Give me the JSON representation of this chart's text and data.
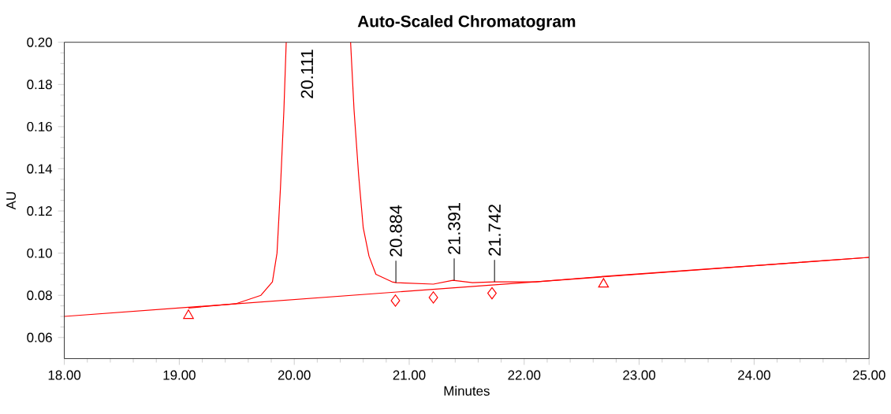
{
  "chart_data": {
    "type": "line",
    "title": "Auto-Scaled Chromatogram",
    "xlabel": "Minutes",
    "ylabel": "AU",
    "xlim": [
      18,
      25
    ],
    "ylim": [
      0.05,
      0.2
    ],
    "xticks": [
      {
        "value": 18,
        "label": "18.00"
      },
      {
        "value": 19,
        "label": "19.00"
      },
      {
        "value": 20,
        "label": "20.00"
      },
      {
        "value": 21,
        "label": "21.00"
      },
      {
        "value": 22,
        "label": "22.00"
      },
      {
        "value": 23,
        "label": "23.00"
      },
      {
        "value": 24,
        "label": "24.00"
      },
      {
        "value": 25,
        "label": "25.00"
      }
    ],
    "yticks": [
      0.06,
      0.08,
      {
        "value": 0.1,
        "label": "0.10"
      },
      0.12,
      0.14,
      0.16,
      0.18,
      {
        "value": 0.2,
        "label": "0.20"
      }
    ],
    "grid": false,
    "series": [
      {
        "color": "#ff0000",
        "marker": "none",
        "x": [
          19.08,
          19.49,
          19.71,
          19.81,
          19.85,
          19.88,
          19.91,
          19.93,
          20.111,
          20.49,
          20.52,
          20.56,
          20.6,
          20.65,
          20.71,
          20.85,
          20.885,
          21.21,
          21.38,
          21.55,
          21.74,
          22.1,
          22.69,
          25
        ],
        "values": [
          0.074,
          0.076,
          0.08,
          0.0864,
          0.1,
          0.131,
          0.168,
          0.2,
          null,
          0.2,
          0.168,
          0.137,
          0.112,
          0.0986,
          0.09,
          0.0864,
          0.086,
          0.0853,
          0.0871,
          0.086,
          0.0864,
          0.0864,
          0.089,
          0.098
        ]
      },
      {
        "color": "#ff0000",
        "marker": "none",
        "x": [
          18,
          25
        ],
        "values": [
          0.07,
          0.098
        ]
      },
      {
        "type": "scatter",
        "color": "#ff0000",
        "marker": "triangle",
        "x": [
          19.08,
          22.69
        ],
        "values": [
          0.0704,
          0.0853
        ]
      },
      {
        "type": "scatter",
        "color": "#ff0000",
        "marker": "diamond",
        "x": [
          20.88,
          21.21,
          21.72
        ],
        "values": [
          0.0775,
          0.079,
          0.081
        ]
      }
    ],
    "annotations": [
      "20.111",
      {
        "text": "20.884",
        "x": 20.884,
        "y": 0.086
      },
      {
        "text": "21.391",
        "x": 21.391,
        "y": 0.0871
      },
      {
        "text": "21.742",
        "x": 21.742,
        "y": 0.0864
      }
    ]
  }
}
